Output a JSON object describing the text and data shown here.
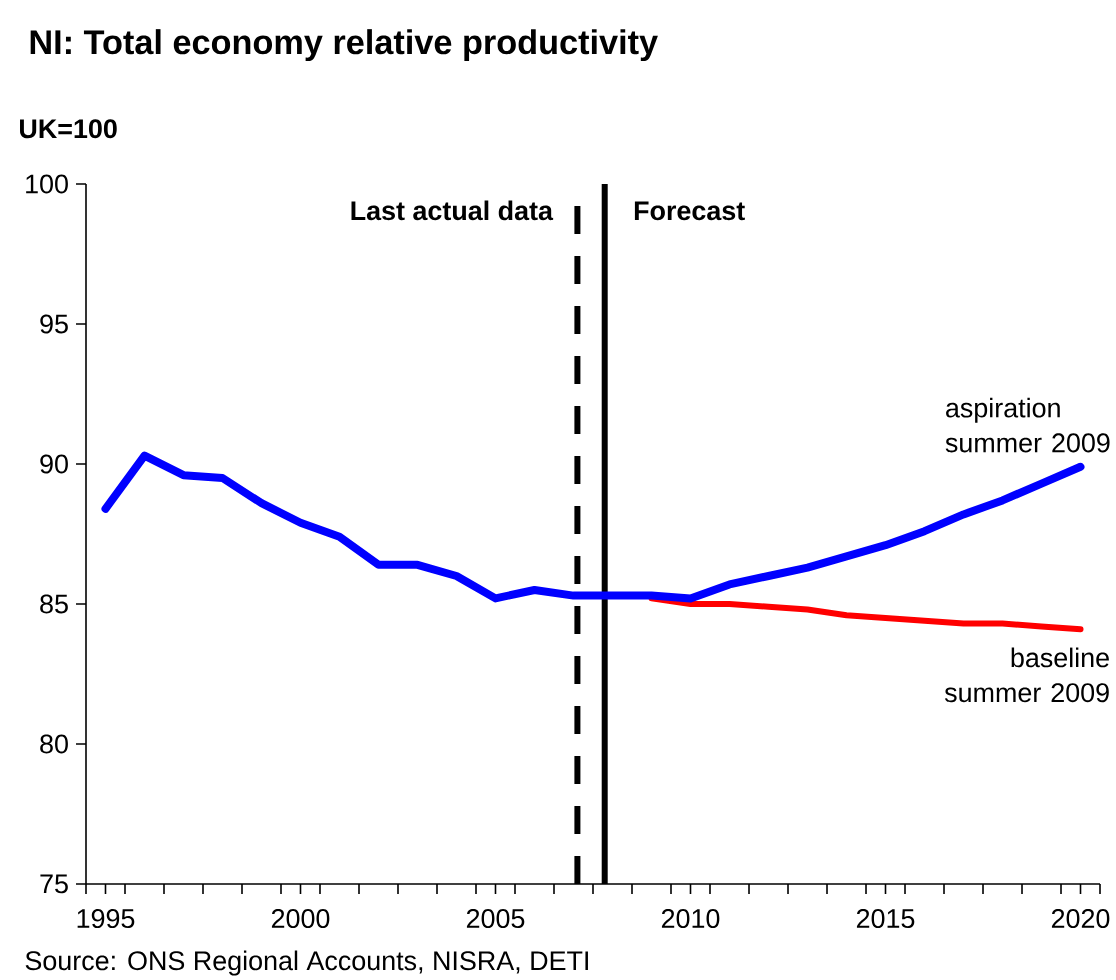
{
  "chart_data": {
    "type": "line",
    "title": "NI: Total economy relative productivity",
    "ylabel": "UK=100",
    "series": [
      {
        "name": "aspiration summer 2009",
        "color": "#0000ff",
        "x": [
          1995,
          1996,
          1997,
          1998,
          1999,
          2000,
          2001,
          2002,
          2003,
          2004,
          2005,
          2006,
          2007,
          2008,
          2009,
          2010,
          2011,
          2012,
          2013,
          2014,
          2015,
          2016,
          2017,
          2018,
          2019,
          2020
        ],
        "values": [
          88.4,
          90.3,
          89.6,
          89.5,
          88.6,
          87.9,
          87.4,
          86.4,
          86.4,
          86.0,
          85.2,
          85.5,
          85.3,
          85.3,
          85.3,
          85.2,
          85.7,
          86.0,
          86.3,
          86.7,
          87.1,
          87.6,
          88.2,
          88.7,
          89.3,
          89.9
        ]
      },
      {
        "name": "baseline summer 2009",
        "color": "#ff0000",
        "x": [
          2009,
          2010,
          2011,
          2012,
          2013,
          2014,
          2015,
          2016,
          2017,
          2018,
          2019,
          2020
        ],
        "values": [
          85.2,
          85.0,
          85.0,
          84.9,
          84.8,
          84.6,
          84.5,
          84.4,
          84.3,
          84.3,
          84.2,
          84.1
        ]
      }
    ],
    "xlim": [
      1994.5,
      2020.5
    ],
    "xticks": [
      {
        "value": 1994.5,
        "label": null
      },
      1995,
      {
        "value": 1995.5,
        "label": null
      },
      {
        "value": 1996.5,
        "label": null
      },
      {
        "value": 1997.5,
        "label": null
      },
      {
        "value": 1998.5,
        "label": null
      },
      {
        "value": 1999.5,
        "label": null
      },
      2000,
      {
        "value": 2000.5,
        "label": null
      },
      {
        "value": 2001.5,
        "label": null
      },
      {
        "value": 2002.5,
        "label": null
      },
      {
        "value": 2003.5,
        "label": null
      },
      {
        "value": 2004.5,
        "label": null
      },
      2005,
      {
        "value": 2005.5,
        "label": null
      },
      {
        "value": 2006.5,
        "label": null
      },
      {
        "value": 2007.5,
        "label": null
      },
      {
        "value": 2008.5,
        "label": null
      },
      {
        "value": 2009.5,
        "label": null
      },
      2010,
      {
        "value": 2010.5,
        "label": null
      },
      {
        "value": 2011.5,
        "label": null
      },
      {
        "value": 2012.5,
        "label": null
      },
      {
        "value": 2013.5,
        "label": null
      },
      {
        "value": 2014.5,
        "label": null
      },
      2015,
      {
        "value": 2015.5,
        "label": null
      },
      {
        "value": 2016.5,
        "label": null
      },
      {
        "value": 2017.5,
        "label": null
      },
      {
        "value": 2018.5,
        "label": null
      },
      {
        "value": 2019.5,
        "label": null
      },
      2020,
      {
        "value": 2020.5,
        "label": null
      }
    ],
    "ylim": [
      75,
      100
    ],
    "yticks": [
      75,
      80,
      85,
      90,
      95,
      100
    ],
    "ref_lines": [
      {
        "axis": "x",
        "value": 2007.1,
        "label": "Last actual data",
        "color": "#000000",
        "line_style": "dashed"
      },
      {
        "axis": "x",
        "value": 2007.8,
        "label": "Forecast",
        "color": "#000000",
        "line_style": "solid"
      }
    ],
    "line_style": "solid",
    "annotations": [
      "Source: ONS Regional Accounts, NISRA, DETI"
    ]
  }
}
